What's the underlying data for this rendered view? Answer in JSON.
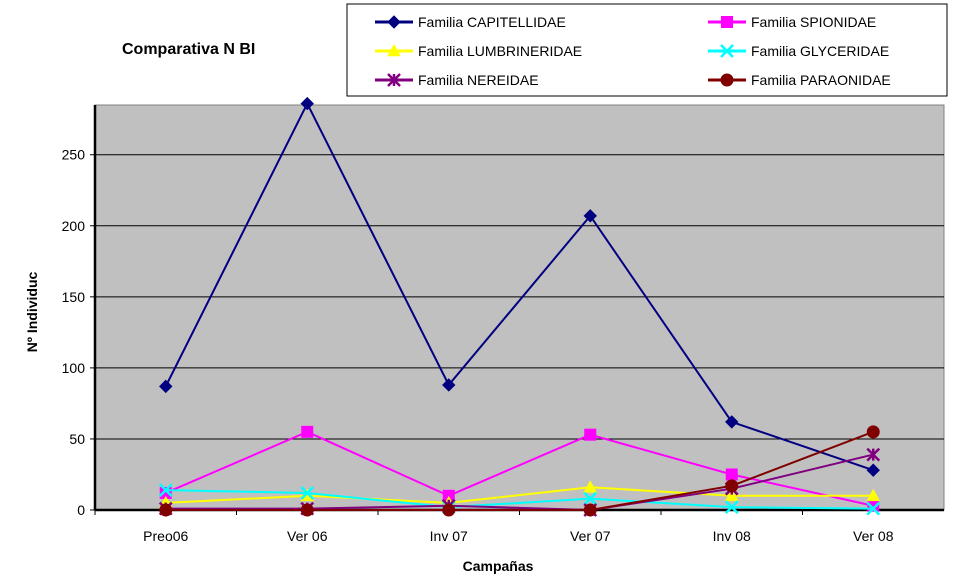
{
  "chart_data": {
    "type": "line",
    "title": "Comparativa N  BI",
    "xlabel": "Campañas",
    "ylabel": "Nº Individuc",
    "categories": [
      "Preo06",
      "Ver 06",
      "Inv 07",
      "Ver 07",
      "Inv 08",
      "Ver 08"
    ],
    "ylim": [
      0,
      285
    ],
    "yticks": [
      0,
      50,
      100,
      150,
      200,
      250
    ],
    "grid": true,
    "plot_background": "#c0c0c0",
    "legend_position": "top-right",
    "series": [
      {
        "name": "Familia CAPITELLIDAE",
        "color": "#000080",
        "marker": "diamond",
        "values": [
          87,
          286,
          88,
          207,
          62,
          28
        ]
      },
      {
        "name": "Familia SPIONIDAE",
        "color": "#ff00ff",
        "marker": "square",
        "values": [
          12,
          55,
          10,
          53,
          25,
          3
        ]
      },
      {
        "name": "Familia LUMBRINERIDAE",
        "color": "#ffff00",
        "marker": "triangle",
        "values": [
          5,
          10,
          5,
          16,
          10,
          10
        ]
      },
      {
        "name": "Familia GLYCERIDAE",
        "color": "#00ffff",
        "marker": "x",
        "values": [
          14,
          12,
          2,
          8,
          2,
          1
        ]
      },
      {
        "name": "Familia NEREIDAE",
        "color": "#800080",
        "marker": "asterisk",
        "values": [
          1,
          1,
          3,
          0,
          15,
          39
        ]
      },
      {
        "name": "Familia PARAONIDAE",
        "color": "#800000",
        "marker": "circle",
        "values": [
          0,
          0,
          0,
          0,
          17,
          55
        ]
      }
    ]
  }
}
